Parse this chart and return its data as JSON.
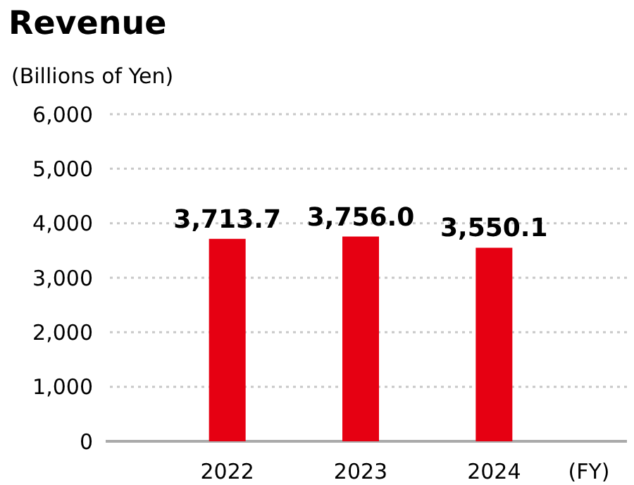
{
  "chart_data": {
    "type": "bar",
    "title": "Revenue",
    "ylabel": "(Billions of Yen)",
    "xlabel": "(FY)",
    "categories": [
      "2022",
      "2023",
      "2024"
    ],
    "values": [
      3713.7,
      3756.0,
      3550.1
    ],
    "value_labels": [
      "3,713.7",
      "3,756.0",
      "3,550.1"
    ],
    "color": "#e60012",
    "ylim": [
      0,
      6000
    ],
    "yticks": [
      0,
      {
        "value": 1000,
        "label": "1,000"
      },
      {
        "value": 2000,
        "label": "2,000"
      },
      {
        "value": 3000,
        "label": "3,000"
      },
      {
        "value": 4000,
        "label": "4,000"
      },
      {
        "value": 5000,
        "label": "5,000"
      },
      {
        "value": 6000,
        "label": "6,000"
      }
    ],
    "grid": "y"
  }
}
